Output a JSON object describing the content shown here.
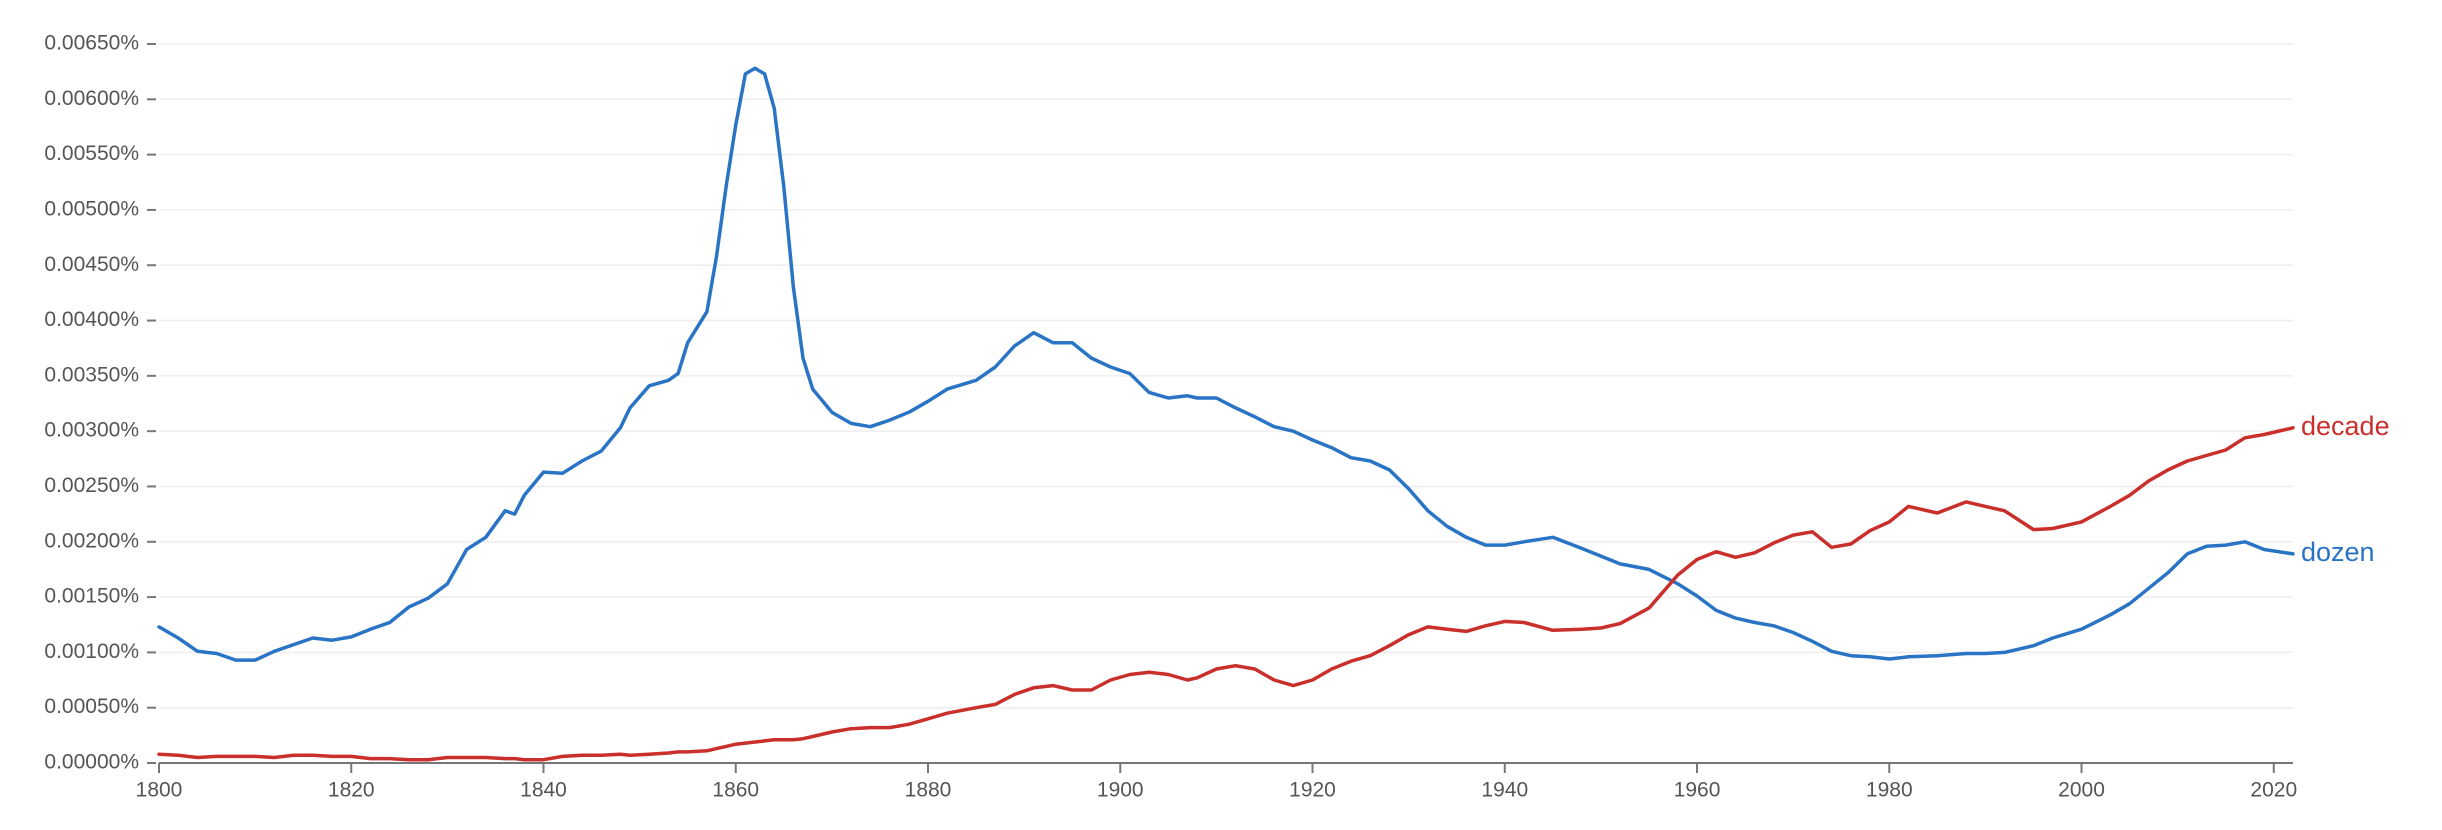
{
  "chart_data": {
    "type": "line",
    "x": [
      1800,
      1802,
      1804,
      1806,
      1808,
      1810,
      1812,
      1814,
      1816,
      1818,
      1820,
      1822,
      1824,
      1826,
      1828,
      1830,
      1832,
      1834,
      1836,
      1837,
      1838,
      1840,
      1842,
      1844,
      1846,
      1848,
      1849,
      1851,
      1853,
      1854,
      1855,
      1857,
      1858,
      1859,
      1860,
      1861,
      1862,
      1863,
      1864,
      1865,
      1866,
      1867,
      1868,
      1870,
      1872,
      1874,
      1876,
      1878,
      1880,
      1882,
      1885,
      1887,
      1889,
      1891,
      1893,
      1895,
      1897,
      1899,
      1901,
      1903,
      1905,
      1907,
      1908,
      1910,
      1912,
      1914,
      1916,
      1918,
      1920,
      1922,
      1924,
      1926,
      1928,
      1930,
      1932,
      1934,
      1936,
      1938,
      1940,
      1942,
      1945,
      1948,
      1950,
      1952,
      1955,
      1958,
      1960,
      1962,
      1964,
      1966,
      1968,
      1970,
      1972,
      1974,
      1976,
      1978,
      1980,
      1982,
      1985,
      1988,
      1990,
      1992,
      1995,
      1997,
      2000,
      2003,
      2005,
      2007,
      2009,
      2011,
      2013,
      2015,
      2017,
      2019,
      2022
    ],
    "series": [
      {
        "name": "dozen",
        "color": "#2a74c5",
        "values": [
          0.00123,
          0.00113,
          0.00101,
          0.00099,
          0.00093,
          0.00093,
          0.00101,
          0.00107,
          0.00113,
          0.00111,
          0.00114,
          0.00121,
          0.00127,
          0.00141,
          0.00149,
          0.00162,
          0.00193,
          0.00204,
          0.00228,
          0.00225,
          0.00242,
          0.00263,
          0.00262,
          0.00273,
          0.00282,
          0.00303,
          0.00321,
          0.00341,
          0.00346,
          0.00352,
          0.0038,
          0.00408,
          0.00458,
          0.00521,
          0.00577,
          0.00623,
          0.00628,
          0.00623,
          0.00592,
          0.00521,
          0.0043,
          0.00366,
          0.00338,
          0.00317,
          0.00307,
          0.00304,
          0.0031,
          0.00317,
          0.00327,
          0.00338,
          0.00346,
          0.00358,
          0.00377,
          0.00389,
          0.0038,
          0.0038,
          0.00366,
          0.00358,
          0.00352,
          0.00335,
          0.0033,
          0.00332,
          0.0033,
          0.0033,
          0.00321,
          0.00313,
          0.00304,
          0.003,
          0.00292,
          0.00285,
          0.00276,
          0.00273,
          0.00265,
          0.00248,
          0.00228,
          0.00214,
          0.00204,
          0.00197,
          0.00197,
          0.002,
          0.00204,
          0.00194,
          0.00187,
          0.0018,
          0.00175,
          0.00162,
          0.00151,
          0.00138,
          0.00131,
          0.00127,
          0.00124,
          0.00118,
          0.0011,
          0.00101,
          0.00097,
          0.00096,
          0.00094,
          0.00096,
          0.00097,
          0.00099,
          0.00099,
          0.001,
          0.00106,
          0.00113,
          0.00121,
          0.00134,
          0.00144,
          0.00158,
          0.00172,
          0.00189,
          0.00196,
          0.00197,
          0.002,
          0.00193,
          0.00189
        ]
      },
      {
        "name": "decade",
        "color": "#c9302c",
        "values": [
          8e-05,
          7e-05,
          5e-05,
          6e-05,
          6e-05,
          6e-05,
          5e-05,
          7e-05,
          7e-05,
          6e-05,
          6e-05,
          4e-05,
          4e-05,
          3e-05,
          3e-05,
          5e-05,
          5e-05,
          5e-05,
          4e-05,
          4e-05,
          3e-05,
          3e-05,
          6e-05,
          7e-05,
          7e-05,
          8e-05,
          7e-05,
          8e-05,
          9e-05,
          0.0001,
          0.0001,
          0.00011,
          0.00013,
          0.00015,
          0.00017,
          0.00018,
          0.00019,
          0.0002,
          0.00021,
          0.00021,
          0.00021,
          0.00022,
          0.00024,
          0.00028,
          0.00031,
          0.00032,
          0.00032,
          0.00035,
          0.0004,
          0.00045,
          0.0005,
          0.00053,
          0.00062,
          0.00068,
          0.0007,
          0.00066,
          0.00066,
          0.00075,
          0.0008,
          0.00082,
          0.0008,
          0.00075,
          0.00077,
          0.00085,
          0.00088,
          0.00085,
          0.00075,
          0.0007,
          0.00075,
          0.00085,
          0.00092,
          0.00097,
          0.00106,
          0.00116,
          0.00123,
          0.00121,
          0.00119,
          0.00124,
          0.00128,
          0.00127,
          0.0012,
          0.00121,
          0.00122,
          0.00126,
          0.0014,
          0.0017,
          0.00184,
          0.00191,
          0.00186,
          0.0019,
          0.00199,
          0.00206,
          0.00209,
          0.00195,
          0.00198,
          0.0021,
          0.00218,
          0.00232,
          0.00226,
          0.00236,
          0.00232,
          0.00228,
          0.00211,
          0.00212,
          0.00218,
          0.00232,
          0.00242,
          0.00255,
          0.00265,
          0.00273,
          0.00278,
          0.00283,
          0.00294,
          0.00297,
          0.00303
        ]
      }
    ],
    "xlim": [
      1800,
      2022
    ],
    "xticks": [
      1800,
      1820,
      1840,
      1860,
      1880,
      1900,
      1920,
      1940,
      1960,
      1980,
      2000,
      2020
    ],
    "ylim": [
      0,
      0.0065
    ],
    "yticks": [
      {
        "value": 0,
        "label": "0.00000%"
      },
      {
        "value": 0.0005,
        "label": "0.00050%"
      },
      {
        "value": 0.001,
        "label": "0.00100%"
      },
      {
        "value": 0.0015,
        "label": "0.00150%"
      },
      {
        "value": 0.002,
        "label": "0.00200%"
      },
      {
        "value": 0.0025,
        "label": "0.00250%"
      },
      {
        "value": 0.003,
        "label": "0.00300%"
      },
      {
        "value": 0.0035,
        "label": "0.00350%"
      },
      {
        "value": 0.004,
        "label": "0.00400%"
      },
      {
        "value": 0.0045,
        "label": "0.00450%"
      },
      {
        "value": 0.005,
        "label": "0.00500%"
      },
      {
        "value": 0.0055,
        "label": "0.00550%"
      },
      {
        "value": 0.006,
        "label": "0.00600%"
      },
      {
        "value": 0.0065,
        "label": "0.00650%"
      }
    ],
    "grid": true
  }
}
